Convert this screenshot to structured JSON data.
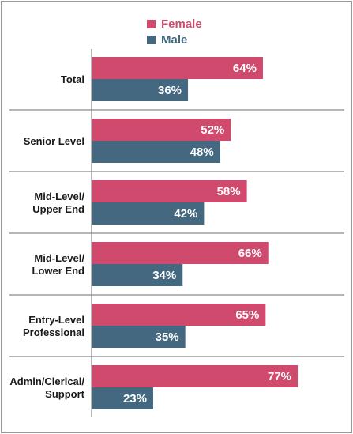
{
  "chart_data": {
    "type": "bar",
    "orientation": "horizontal",
    "categories": [
      [
        "Total"
      ],
      [
        "Senior Level"
      ],
      [
        "Mid-Level/",
        "Upper End"
      ],
      [
        "Mid-Level/",
        "Lower End"
      ],
      [
        "Entry-Level",
        "Professional"
      ],
      [
        "Admin/Clerical/",
        "Support"
      ]
    ],
    "series": [
      {
        "name": "Female",
        "color": "#d04a6e",
        "values": [
          64,
          52,
          58,
          66,
          65,
          77
        ],
        "labels": [
          "64%",
          "52%",
          "58%",
          "66%",
          "65%",
          "77%"
        ]
      },
      {
        "name": "Male",
        "color": "#43687f",
        "values": [
          36,
          48,
          42,
          34,
          35,
          23
        ],
        "labels": [
          "36%",
          "48%",
          "42%",
          "34%",
          "35%",
          "23%"
        ]
      }
    ],
    "xlim": [
      0,
      100
    ],
    "legend": "top",
    "grid": false
  }
}
